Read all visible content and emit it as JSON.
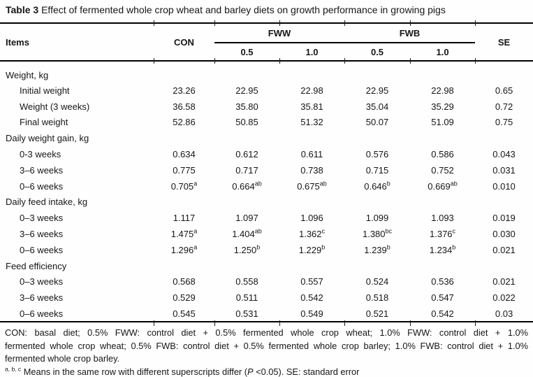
{
  "caption": {
    "number": "Table 3",
    "text": " Effect of fermented whole crop wheat and barley diets on growth performance in growing pigs"
  },
  "table": {
    "header": {
      "items": "Items",
      "con": "CON",
      "fww": "FWW",
      "fwb": "FWB",
      "se": "SE",
      "sub": [
        "0.5",
        "1.0",
        "0.5",
        "1.0"
      ]
    },
    "sections": [
      {
        "label": "Weight, kg",
        "rows": [
          {
            "label": "Initial weight",
            "values": [
              {
                "v": "23.26"
              },
              {
                "v": "22.95"
              },
              {
                "v": "22.98"
              },
              {
                "v": "22.95"
              },
              {
                "v": "22.98"
              },
              {
                "v": "0.65"
              }
            ]
          },
          {
            "label": "Weight (3 weeks)",
            "values": [
              {
                "v": "36.58"
              },
              {
                "v": "35.80"
              },
              {
                "v": "35.81"
              },
              {
                "v": "35.04"
              },
              {
                "v": "35.29"
              },
              {
                "v": "0.72"
              }
            ]
          },
          {
            "label": "Final weight",
            "values": [
              {
                "v": "52.86"
              },
              {
                "v": "50.85"
              },
              {
                "v": "51.32"
              },
              {
                "v": "50.07"
              },
              {
                "v": "51.09"
              },
              {
                "v": "0.75"
              }
            ]
          }
        ]
      },
      {
        "label": "Daily weight gain, kg",
        "rows": [
          {
            "label": "0-3 weeks",
            "values": [
              {
                "v": "0.634"
              },
              {
                "v": "0.612"
              },
              {
                "v": "0.611"
              },
              {
                "v": "0.576"
              },
              {
                "v": "0.586"
              },
              {
                "v": "0.043"
              }
            ]
          },
          {
            "label": "3–6 weeks",
            "values": [
              {
                "v": "0.775"
              },
              {
                "v": "0.717"
              },
              {
                "v": "0.738"
              },
              {
                "v": "0.715"
              },
              {
                "v": "0.752"
              },
              {
                "v": "0.031"
              }
            ]
          },
          {
            "label": "0–6 weeks",
            "values": [
              {
                "v": "0.705",
                "sup": "a"
              },
              {
                "v": "0.664",
                "sup": "ab"
              },
              {
                "v": "0.675",
                "sup": "ab"
              },
              {
                "v": "0.646",
                "sup": "b"
              },
              {
                "v": "0.669",
                "sup": "ab"
              },
              {
                "v": "0.010"
              }
            ]
          }
        ]
      },
      {
        "label": "Daily feed intake, kg",
        "rows": [
          {
            "label": "0–3 weeks",
            "values": [
              {
                "v": "1.117"
              },
              {
                "v": "1.097"
              },
              {
                "v": "1.096"
              },
              {
                "v": "1.099"
              },
              {
                "v": "1.093"
              },
              {
                "v": "0.019"
              }
            ]
          },
          {
            "label": "3–6 weeks",
            "values": [
              {
                "v": "1.475",
                "sup": "a"
              },
              {
                "v": "1.404",
                "sup": "ab"
              },
              {
                "v": "1.362",
                "sup": "c"
              },
              {
                "v": "1.380",
                "sup": "bc"
              },
              {
                "v": "1.376",
                "sup": "c"
              },
              {
                "v": "0.030"
              }
            ]
          },
          {
            "label": "0–6 weeks",
            "values": [
              {
                "v": "1.296",
                "sup": "a"
              },
              {
                "v": "1.250",
                "sup": "b"
              },
              {
                "v": "1.229",
                "sup": "b"
              },
              {
                "v": "1.239",
                "sup": "b"
              },
              {
                "v": "1.234",
                "sup": "b"
              },
              {
                "v": "0.021"
              }
            ]
          }
        ]
      },
      {
        "label": "Feed efficiency",
        "rows": [
          {
            "label": "0–3 weeks",
            "values": [
              {
                "v": "0.568"
              },
              {
                "v": "0.558"
              },
              {
                "v": "0.557"
              },
              {
                "v": "0.524"
              },
              {
                "v": "0.536"
              },
              {
                "v": "0.021"
              }
            ]
          },
          {
            "label": "3–6 weeks",
            "values": [
              {
                "v": "0.529"
              },
              {
                "v": "0.511"
              },
              {
                "v": "0.542"
              },
              {
                "v": "0.518"
              },
              {
                "v": "0.547"
              },
              {
                "v": "0.022"
              }
            ]
          },
          {
            "label": "0–6 weeks",
            "values": [
              {
                "v": "0.545"
              },
              {
                "v": "0.531"
              },
              {
                "v": "0.549"
              },
              {
                "v": "0.521"
              },
              {
                "v": "0.542"
              },
              {
                "v": "0.03"
              }
            ]
          }
        ]
      }
    ]
  },
  "footnotes": {
    "lines": [
      "CON: basal diet; 0.5% FWW: control diet + 0.5% fermented whole crop wheat; 1.0% FWW: control diet + 1.0%",
      "fermented whole crop wheat; 0.5% FWB: control diet + 0.5% fermented whole crop barley; 1.0% FWB: control diet + 1.0%",
      "fermented whole crop barley."
    ],
    "sup_label": "a, b, c",
    "sup_pre": " Means in the same row with different superscripts differ (",
    "p_symbol": "P",
    "sup_post": " <0.05). SE: standard error"
  }
}
